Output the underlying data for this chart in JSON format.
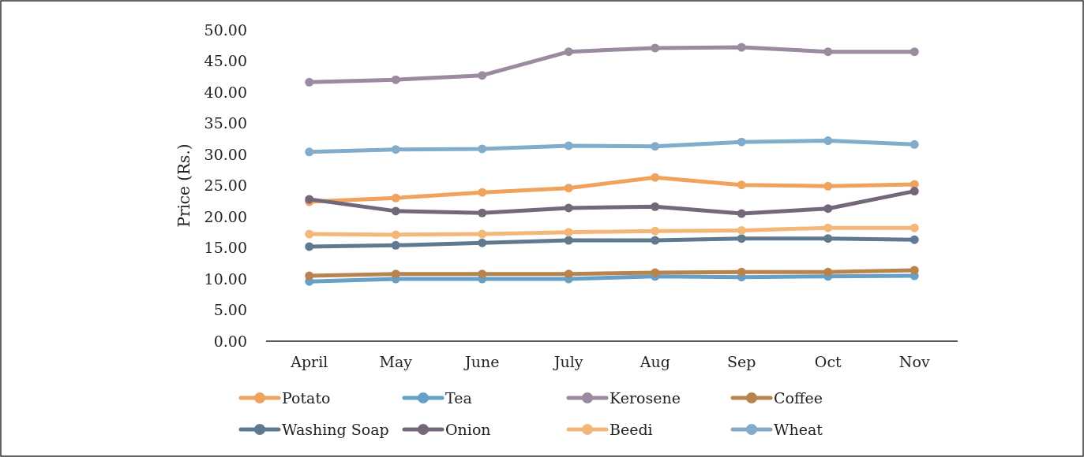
{
  "chart_data": {
    "type": "line",
    "ylabel": "Price (Rs.)",
    "categories": [
      "April",
      "May",
      "June",
      "July",
      "Aug",
      "Sep",
      "Oct",
      "Nov"
    ],
    "series": [
      {
        "name": "Potato",
        "color": "#f0a35c",
        "values": [
          22.4,
          23.0,
          23.9,
          24.6,
          26.3,
          25.1,
          24.9,
          25.2
        ]
      },
      {
        "name": "Tea",
        "color": "#64a0c8",
        "values": [
          9.6,
          10.0,
          10.0,
          10.0,
          10.4,
          10.3,
          10.4,
          10.5
        ]
      },
      {
        "name": "Kerosene",
        "color": "#9b8aa0",
        "values": [
          41.6,
          42.0,
          42.7,
          46.5,
          47.1,
          47.2,
          46.5,
          46.5
        ]
      },
      {
        "name": "Coffee",
        "color": "#b8834c",
        "values": [
          10.5,
          10.8,
          10.8,
          10.8,
          11.0,
          11.1,
          11.1,
          11.4
        ]
      },
      {
        "name": "Washing Soap",
        "color": "#5f7a90",
        "values": [
          15.2,
          15.4,
          15.8,
          16.2,
          16.2,
          16.5,
          16.5,
          16.3
        ]
      },
      {
        "name": "Onion",
        "color": "#72687a",
        "values": [
          22.8,
          20.9,
          20.6,
          21.4,
          21.6,
          20.5,
          21.3,
          24.1
        ]
      },
      {
        "name": "Beedi",
        "color": "#f4b77a",
        "values": [
          17.2,
          17.1,
          17.2,
          17.5,
          17.7,
          17.8,
          18.2,
          18.2
        ]
      },
      {
        "name": "Wheat",
        "color": "#82accb",
        "values": [
          30.4,
          30.8,
          30.9,
          31.4,
          31.3,
          32.0,
          32.2,
          31.6
        ]
      }
    ],
    "ylim": [
      0,
      50
    ],
    "yticks": [
      {
        "value": 0,
        "label": "0.00"
      },
      {
        "value": 5,
        "label": "5.00"
      },
      {
        "value": 10,
        "label": "10.00"
      },
      {
        "value": 15,
        "label": "15.00"
      },
      {
        "value": 20,
        "label": "20.00"
      },
      {
        "value": 25,
        "label": "25.00"
      },
      {
        "value": 30,
        "label": "30.00"
      },
      {
        "value": 35,
        "label": "35.00"
      },
      {
        "value": 40,
        "label": "40.00"
      },
      {
        "value": 45,
        "label": "45.00"
      },
      {
        "value": 50,
        "label": "50.00"
      }
    ],
    "grid": false,
    "legend": "bottom",
    "marker": "circle",
    "line_style": "solid"
  }
}
